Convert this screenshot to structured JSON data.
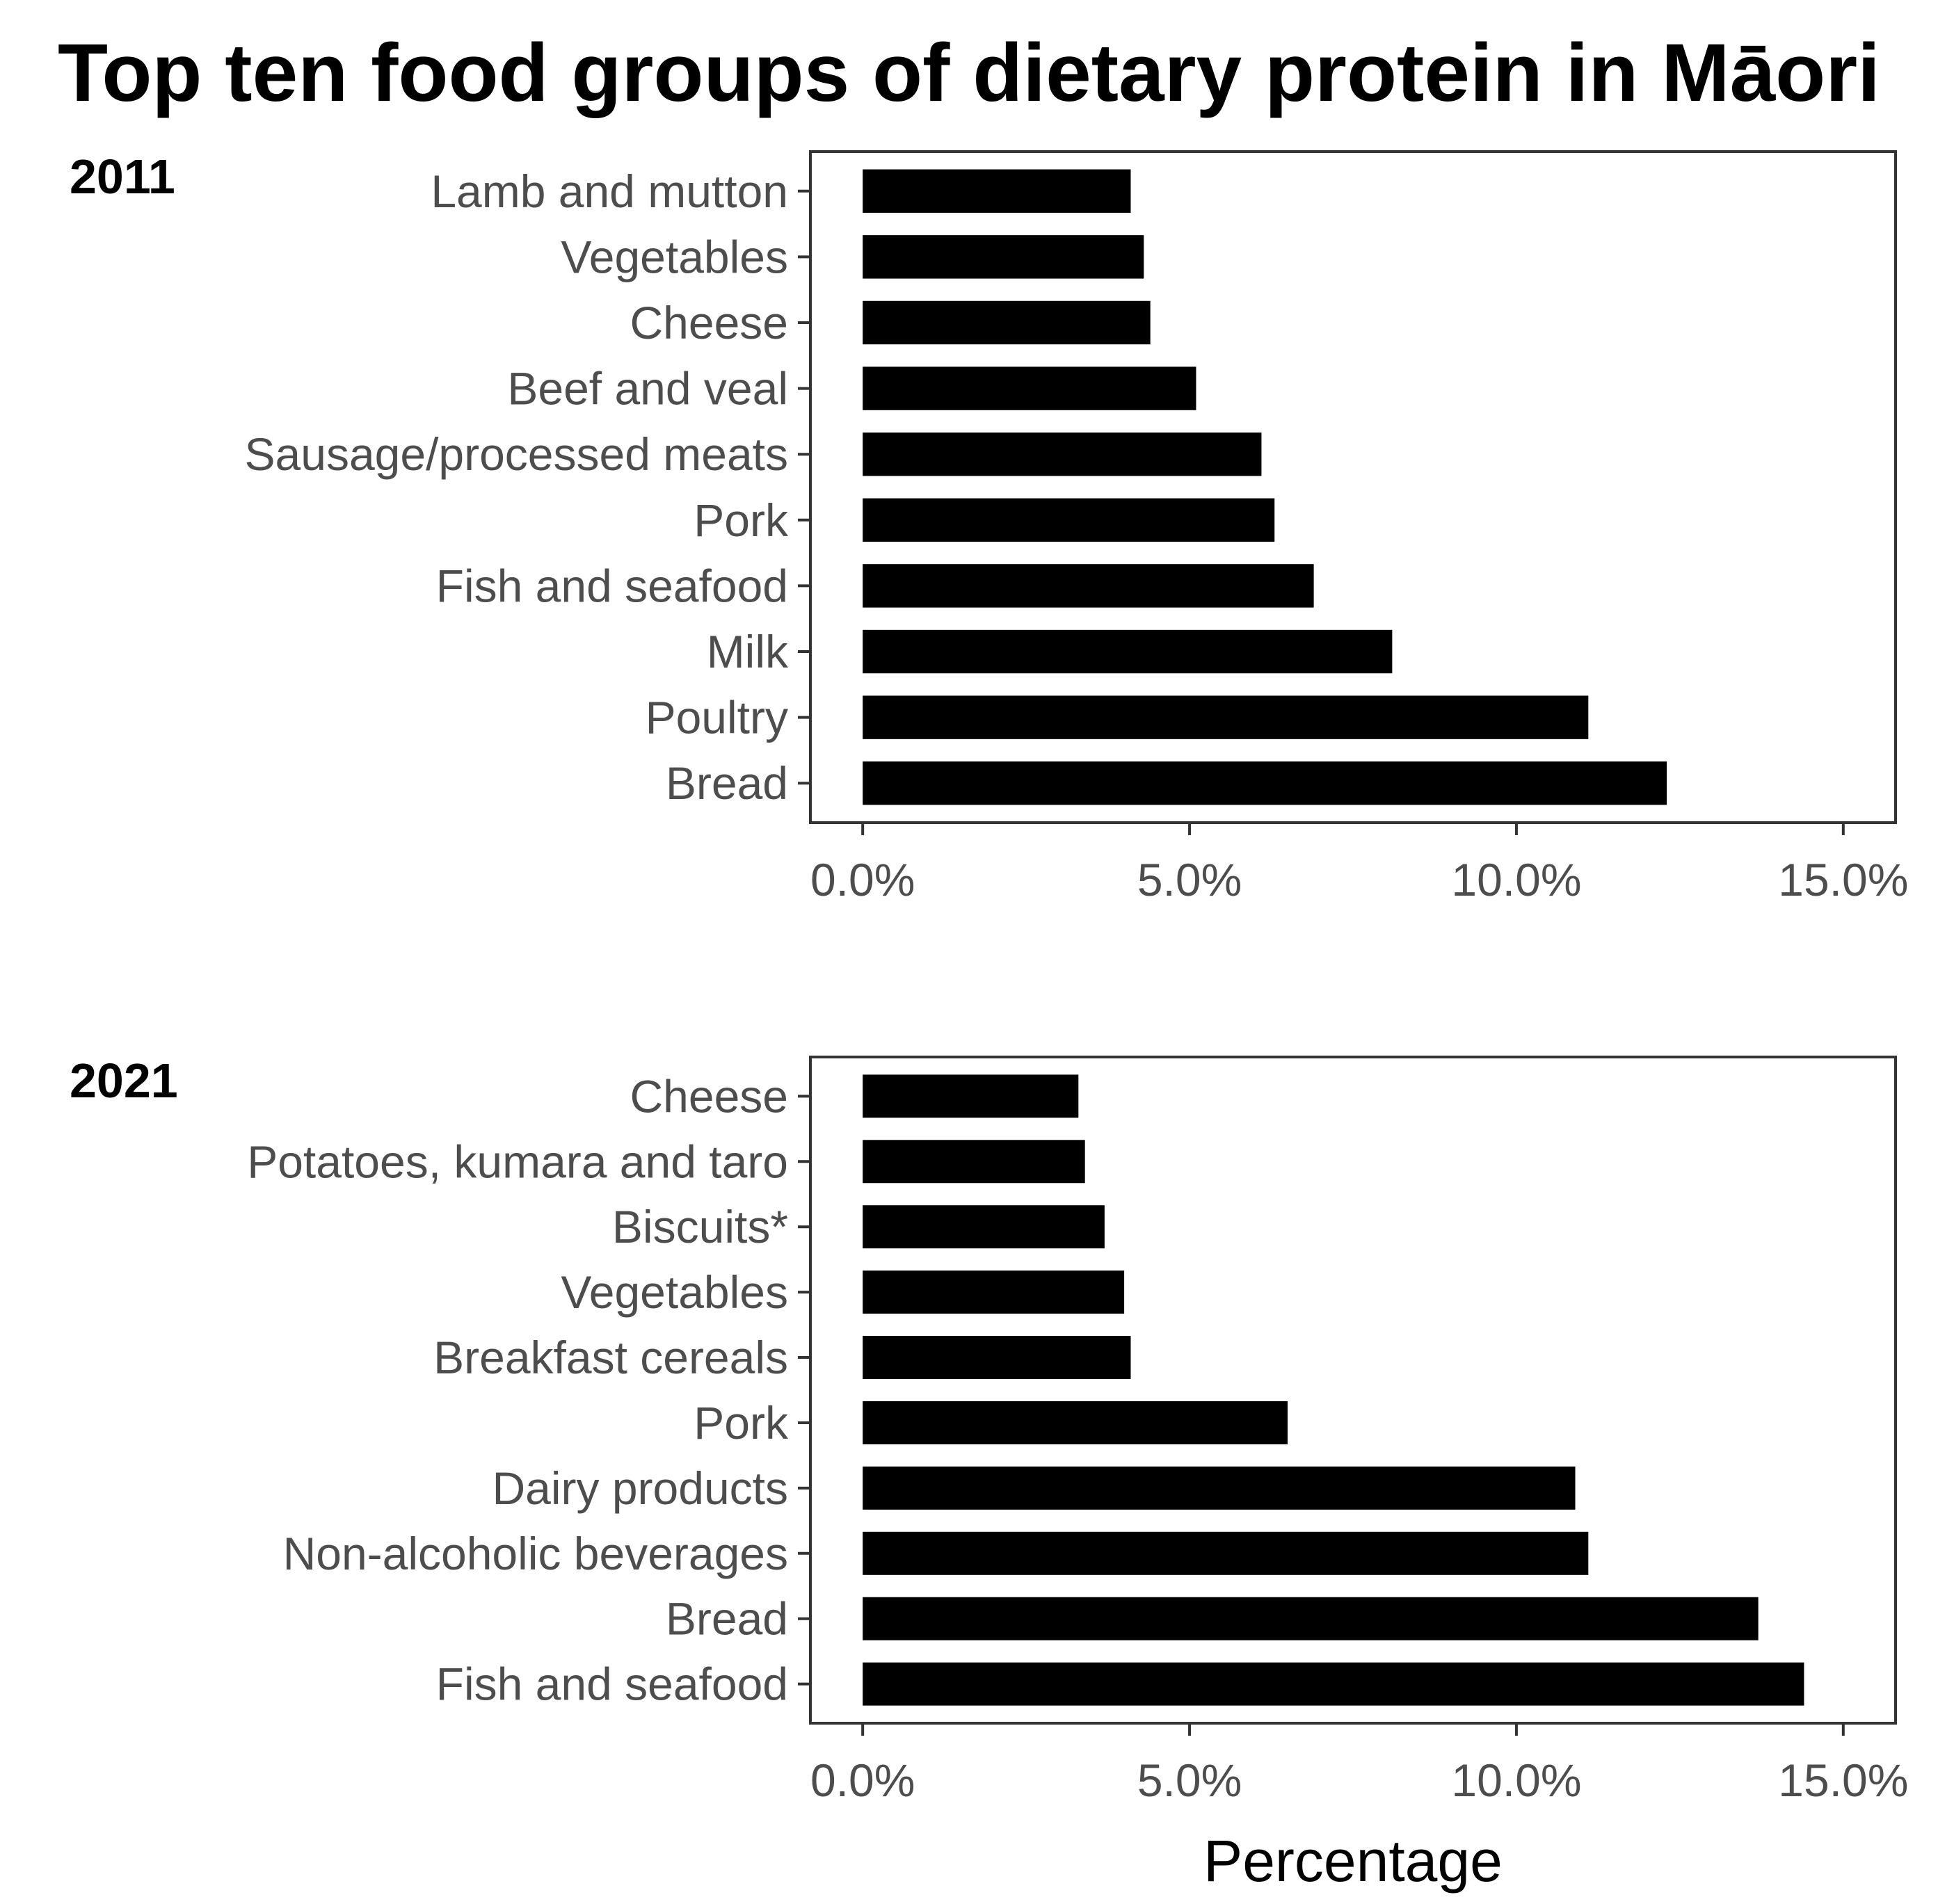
{
  "colors": {
    "bar": "#000000",
    "frame": "#333333",
    "tick": "#333333",
    "label": "#4d4d4d",
    "background": "#ffffff"
  },
  "title": "Top ten food groups of dietary protein in Māori",
  "x_axis_title": "Percentage",
  "chart_data": [
    {
      "type": "bar",
      "orientation": "horizontal",
      "panel_label": "2011",
      "title": "Top ten food groups of dietary protein in Māori",
      "xlabel": "",
      "ylabel": "",
      "xlim": [
        -0.8,
        15.8
      ],
      "x_ticks": [
        0,
        5,
        10,
        15
      ],
      "x_tick_labels": [
        "0.0%",
        "5.0%",
        "10.0%",
        "15.0%"
      ],
      "categories": [
        "Lamb and mutton",
        "Vegetables",
        "Cheese",
        "Beef and veal",
        "Sausage/processed meats",
        "Pork",
        "Fish and seafood",
        "Milk",
        "Poultry",
        "Bread"
      ],
      "values": [
        4.1,
        4.3,
        4.4,
        5.1,
        6.1,
        6.3,
        6.9,
        8.1,
        11.1,
        12.3
      ],
      "grid": false
    },
    {
      "type": "bar",
      "orientation": "horizontal",
      "panel_label": "2021",
      "title": "Top ten food groups of dietary protein in Māori",
      "xlabel": "Percentage",
      "ylabel": "",
      "xlim": [
        -0.8,
        15.8
      ],
      "x_ticks": [
        0,
        5,
        10,
        15
      ],
      "x_tick_labels": [
        "0.0%",
        "5.0%",
        "10.0%",
        "15.0%"
      ],
      "categories": [
        "Cheese",
        "Potatoes, kumara and taro",
        "Biscuits*",
        "Vegetables",
        "Breakfast cereals",
        "Pork",
        "Dairy products",
        "Non-alcoholic beverages",
        "Bread",
        "Fish and seafood"
      ],
      "values": [
        3.3,
        3.4,
        3.7,
        4.0,
        4.1,
        6.5,
        10.9,
        11.1,
        13.7,
        14.4
      ],
      "grid": false
    }
  ]
}
